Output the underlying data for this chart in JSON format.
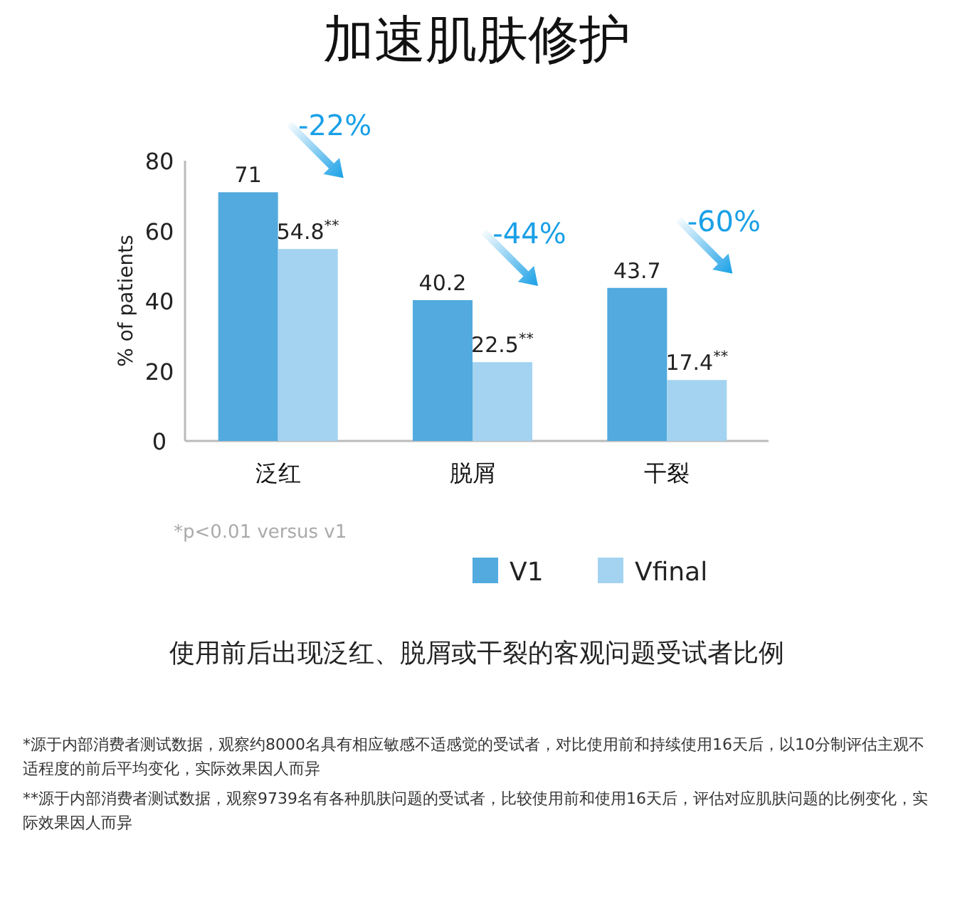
{
  "chart_data": {
    "type": "bar",
    "title": "加速肌肤修护",
    "subtitle": "使用前后出现泛红、脱屑或干裂的客观问题受试者比例",
    "ylabel": "% of patients",
    "categories": [
      "泛红",
      "脱屑",
      "干裂"
    ],
    "series": [
      {
        "name": "V1",
        "color": "#52aade",
        "values": [
          71,
          40.2,
          43.7
        ],
        "value_labels": [
          "71",
          "40.2",
          "43.7"
        ]
      },
      {
        "name": "Vfinal",
        "color": "#a3d3f1",
        "values": [
          54.8,
          22.5,
          17.4
        ],
        "value_labels": [
          "54.8$^{**}$",
          "22.5$^{**}$",
          "17.4$^{**}$"
        ]
      }
    ],
    "ylim": [
      0,
      80
    ],
    "yticks": [
      0,
      20,
      40,
      60,
      80
    ],
    "grid": false,
    "legend": "bottom",
    "annotations": [
      "-22%",
      "-44%",
      "-60%",
      "*p<0.01 versus v1",
      "*源于内部消费者测试数据，观察约8000名具有相应敏感不适感觉的受试者，对比使用前和持续使用16天后，以10分制评估主观不适程度的前后平均变化，实际效果因人而异",
      "**源于内部消费者测试数据，观察9739名有各种肌肤问题的受试者，比较使用前和使用16天后，评估对应肌肤问题的比例变化，实际效果因人而异"
    ]
  }
}
